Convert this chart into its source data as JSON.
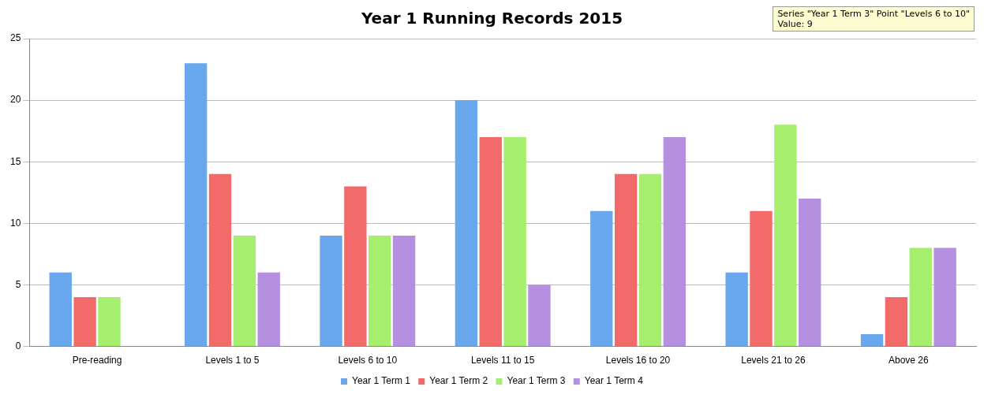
{
  "chart_data": {
    "type": "bar",
    "title": "Year 1 Running Records 2015",
    "categories": [
      "Pre-reading",
      "Levels 1 to 5",
      "Levels 6 to 10",
      "Levels 11 to 15",
      "Levels 16 to 20",
      "Levels 21 to 26",
      "Above 26"
    ],
    "series": [
      {
        "name": "Year 1 Term 1",
        "color": "#6aa8ee",
        "values": [
          6,
          23,
          9,
          20,
          11,
          6,
          1
        ]
      },
      {
        "name": "Year 1 Term 2",
        "color": "#f26a6a",
        "values": [
          4,
          14,
          13,
          17,
          14,
          11,
          4
        ]
      },
      {
        "name": "Year 1 Term 3",
        "color": "#a6ee6e",
        "values": [
          4,
          9,
          9,
          17,
          14,
          18,
          8
        ]
      },
      {
        "name": "Year 1 Term 4",
        "color": "#b590e0",
        "values": [
          null,
          6,
          9,
          5,
          17,
          12,
          8
        ]
      }
    ],
    "ylim": [
      0,
      25
    ],
    "yticks": [
      0,
      5,
      10,
      15,
      20,
      25
    ],
    "grid": "y",
    "legend": "bottom",
    "annotations": [
      "Series \"Year 1 Term 3\" Point \"Levels 6 to 10\"\nValue: 9"
    ]
  }
}
